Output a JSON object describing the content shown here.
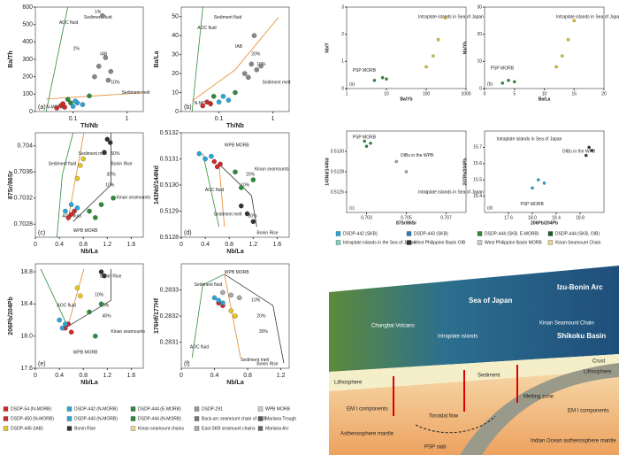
{
  "panels": [
    {
      "label": "(a)",
      "xlabel": "Th/Nb",
      "ylabel": "Ba/Th",
      "xlog": true,
      "xlim": [
        0.02,
        2
      ],
      "xticks": [
        0.1,
        1
      ],
      "ylim": [
        0,
        600
      ],
      "yticks": [
        0,
        100,
        200,
        300,
        400,
        500,
        600
      ],
      "annotations": [
        "AOC fluid",
        "Sediment fluid",
        "IAB",
        "N-MORB",
        "Sediment melt",
        "1%",
        "2%",
        "10%"
      ],
      "series": [
        {
          "color": "#d62728",
          "x": [
            0.05,
            0.06,
            0.07,
            0.065
          ],
          "y": [
            20,
            35,
            25,
            45
          ]
        },
        {
          "color": "#2aa7d8",
          "x": [
            0.1,
            0.12,
            0.15,
            0.11
          ],
          "y": [
            30,
            50,
            40,
            60
          ]
        },
        {
          "color": "#888",
          "x": [
            0.25,
            0.3,
            0.4,
            0.5,
            0.35,
            0.45
          ],
          "y": [
            200,
            260,
            310,
            230,
            550,
            180
          ]
        },
        {
          "color": "#2e8b3c",
          "x": [
            0.08,
            0.09,
            0.2
          ],
          "y": [
            70,
            50,
            90
          ]
        }
      ]
    },
    {
      "label": "(b)",
      "xlabel": "Th/Nb",
      "ylabel": "Ba/La",
      "xlog": true,
      "xlim": [
        0.02,
        2
      ],
      "xticks": [
        0.1,
        1
      ],
      "ylim": [
        0,
        55
      ],
      "yticks": [
        0,
        10,
        20,
        30,
        40,
        50
      ],
      "annotations": [
        "AOC fluid",
        "Sediment fluid",
        "IAB",
        "Sediment melt",
        "N-MORB",
        "10%",
        "20%"
      ],
      "series": [
        {
          "color": "#d62728",
          "x": [
            0.05,
            0.06,
            0.07
          ],
          "y": [
            3,
            5,
            4
          ]
        },
        {
          "color": "#2aa7d8",
          "x": [
            0.1,
            0.12,
            0.15
          ],
          "y": [
            5,
            8,
            6
          ]
        },
        {
          "color": "#888",
          "x": [
            0.3,
            0.4,
            0.5,
            0.45,
            0.6,
            0.35
          ],
          "y": [
            20,
            25,
            22,
            40,
            24,
            18
          ]
        },
        {
          "color": "#2e8b3c",
          "x": [
            0.08,
            0.2
          ],
          "y": [
            8,
            10
          ]
        }
      ]
    },
    {
      "label": "(c)",
      "xlabel": "Nb/La",
      "ylabel": "87Sr/86Sr",
      "xlim": [
        0,
        1.8
      ],
      "xticks": [
        0,
        0.4,
        0.8,
        1.2,
        1.6
      ],
      "ylim": [
        0.7026,
        0.7042
      ],
      "yticks": [
        0.7028,
        0.7032,
        0.7036,
        0.704
      ],
      "annotations": [
        "Sediment fluid",
        "Sediment melt",
        "Bonin Rise",
        "AOC fluid",
        "WPB MORB",
        "Kinan seamounts",
        "10%",
        "30%",
        "50%"
      ],
      "series": [
        {
          "color": "#d62728",
          "x": [
            0.55,
            0.6,
            0.65
          ],
          "y": [
            0.7029,
            0.70295,
            0.703
          ]
        },
        {
          "color": "#2aa7d8",
          "x": [
            0.5,
            0.6,
            0.7
          ],
          "y": [
            0.703,
            0.7031,
            0.70305
          ]
        },
        {
          "color": "#2e8b3c",
          "x": [
            0.9,
            1.0,
            1.1,
            1.3
          ],
          "y": [
            0.703,
            0.7029,
            0.7031,
            0.7032
          ]
        },
        {
          "color": "#e8c81e",
          "x": [
            0.7,
            0.75,
            0.8
          ],
          "y": [
            0.7035,
            0.7037,
            0.7038
          ]
        },
        {
          "color": "#333",
          "x": [
            1.2,
            1.25,
            1.15
          ],
          "y": [
            0.7041,
            0.70405,
            0.7039
          ]
        }
      ]
    },
    {
      "label": "(d)",
      "xlabel": "Nb/La",
      "ylabel": "143Nd/144Nd",
      "xlim": [
        0,
        1.8
      ],
      "xticks": [
        0,
        0.4,
        0.8,
        1.2,
        1.6
      ],
      "ylim": [
        0.5128,
        0.5132
      ],
      "yticks": [
        0.5128,
        0.5129,
        {
          "value": 0.513,
          "label": "0.5130"
        },
        0.5131,
        0.5132
      ],
      "annotations": [
        "WPB MORB",
        "Kinan seamounts",
        "Bonin Rise",
        "AOC fluid",
        "Sediment melt",
        "10%",
        "20%",
        "30%"
      ],
      "series": [
        {
          "color": "#d62728",
          "x": [
            0.55,
            0.6,
            0.65
          ],
          "y": [
            0.51309,
            0.51307,
            0.51308
          ]
        },
        {
          "color": "#2aa7d8",
          "x": [
            0.3,
            0.4,
            0.5
          ],
          "y": [
            0.51312,
            0.5131,
            0.51311
          ]
        },
        {
          "color": "#2e8b3c",
          "x": [
            0.9,
            1.0,
            1.2
          ],
          "y": [
            0.51305,
            0.51299,
            0.51302
          ]
        },
        {
          "color": "#333",
          "x": [
            1.0,
            1.1,
            1.2
          ],
          "y": [
            0.51292,
            0.51289,
            0.51286
          ]
        }
      ]
    },
    {
      "label": "(e)",
      "xlabel": "Nb/La",
      "ylabel": "206Pb/204Pb",
      "xlim": [
        0,
        1.8
      ],
      "xticks": [
        0,
        0.4,
        0.8,
        1.2,
        1.6
      ],
      "ylim": [
        17.6,
        18.9
      ],
      "yticks": [
        17.6,
        {
          "value": 18,
          "label": "18.0"
        },
        18.4,
        18.8
      ],
      "annotations": [
        "Bonin Rise",
        "AOC fluid",
        "WPB MORB",
        "Kinan seamounts",
        "10%",
        "20%",
        "40%"
      ],
      "series": [
        {
          "color": "#d62728",
          "x": [
            0.5,
            0.55,
            0.6
          ],
          "y": [
            18.1,
            18.15,
            18.05
          ]
        },
        {
          "color": "#2aa7d8",
          "x": [
            0.4,
            0.45,
            0.5
          ],
          "y": [
            18.2,
            18.1,
            18.15
          ]
        },
        {
          "color": "#2e8b3c",
          "x": [
            0.9,
            1.0,
            1.1
          ],
          "y": [
            18.3,
            18.0,
            18.4
          ]
        },
        {
          "color": "#e8c81e",
          "x": [
            0.7,
            0.75
          ],
          "y": [
            18.6,
            18.5
          ]
        },
        {
          "color": "#333",
          "x": [
            1.1,
            1.15
          ],
          "y": [
            18.8,
            18.75
          ]
        }
      ]
    },
    {
      "label": "(f)",
      "xlabel": "Nb/La",
      "ylabel": "176Hf/177Hf",
      "xlim": [
        0,
        1.3
      ],
      "xticks": [
        0,
        0.4,
        0.8,
        1.2
      ],
      "ylim": [
        0.283,
        0.2834
      ],
      "yticks": [
        0.2831,
        0.2832,
        0.2833
      ],
      "annotations": [
        "WPB MORB",
        "Sediment fluid",
        "AOC fluid",
        "Sediment melt",
        "Bonin Rise",
        "10%",
        "20%",
        "30%"
      ],
      "series": [
        {
          "color": "#d62728",
          "x": [
            0.45,
            0.5
          ],
          "y": [
            0.28325,
            0.28324
          ]
        },
        {
          "color": "#2aa7d8",
          "x": [
            0.4,
            0.45,
            0.5
          ],
          "y": [
            0.28327,
            0.28326,
            0.28325
          ]
        },
        {
          "color": "#e8c81e",
          "x": [
            0.6,
            0.65
          ],
          "y": [
            0.28322,
            0.2832
          ]
        },
        {
          "color": "#aaa",
          "x": [
            0.5,
            0.6,
            0.7
          ],
          "y": [
            0.28329,
            0.28328,
            0.28327
          ]
        }
      ]
    }
  ],
  "insets": [
    {
      "label": "(a)",
      "xlabel": "Ba/Yb",
      "ylabel": "Nb/Y",
      "xlog": true,
      "xlim": [
        1,
        1000
      ],
      "xticks": [
        1,
        10,
        100,
        1000
      ],
      "ylim": [
        0,
        3
      ],
      "yticks": [
        0,
        1,
        2,
        3
      ],
      "annotations": [
        "Intraplate islands in Sea of Japan",
        "PSP MORB"
      ],
      "series": [
        {
          "color": "#2e8b3c",
          "x": [
            5,
            8,
            10
          ],
          "y": [
            0.3,
            0.4,
            0.35
          ]
        },
        {
          "color": "#e8c81e",
          "x": [
            100,
            150,
            200,
            300
          ],
          "y": [
            0.8,
            1.2,
            1.8,
            2.6
          ]
        }
      ]
    },
    {
      "label": "(b)",
      "xlabel": "Ba/La",
      "ylabel": "Nb/Yb",
      "xlim": [
        0,
        20
      ],
      "xticks": [
        0,
        5,
        10,
        15,
        20
      ],
      "ylim": [
        0,
        30
      ],
      "yticks": [
        0,
        10,
        20,
        30
      ],
      "annotations": [
        "Intraplate islands in Sea of Japan",
        "PSP MORB"
      ],
      "series": [
        {
          "color": "#2e8b3c",
          "x": [
            3,
            4,
            5
          ],
          "y": [
            2,
            3,
            2.5
          ]
        },
        {
          "color": "#e8c81e",
          "x": [
            12,
            13,
            14,
            15
          ],
          "y": [
            8,
            12,
            18,
            25
          ]
        }
      ]
    },
    {
      "label": "(c)",
      "xlabel": "87Sr/86Sr",
      "ylabel": "143Nd/144Nd",
      "xlim": [
        0.702,
        0.708
      ],
      "xticks": [
        0.703,
        0.705,
        0.707
      ],
      "ylim": [
        0.5124,
        0.5132
      ],
      "yticks": [
        0.5126,
        0.5128,
        {
          "value": 0.513,
          "label": "0.5130"
        }
      ],
      "annotations": [
        "PSP MORB",
        "OIBs in the WPB",
        "Intraplate islands in Sea of Japan"
      ],
      "series": [
        {
          "color": "#2e8b3c",
          "x": [
            0.7029,
            0.703,
            0.7032
          ],
          "y": [
            0.5131,
            0.51305,
            0.51308
          ]
        },
        {
          "color": "#aaa",
          "x": [
            0.7045,
            0.705,
            0.706
          ],
          "y": [
            0.5129,
            0.5128,
            0.5126
          ]
        }
      ]
    },
    {
      "label": "(d)",
      "xlabel": "206Pb/204Pb",
      "ylabel": "207Pb/204Pb",
      "xlim": [
        17.2,
        19.2
      ],
      "xticks": [
        17.6,
        {
          "value": 18,
          "label": "18.0"
        },
        18.4,
        18.8
      ],
      "ylim": [
        15.3,
        15.8
      ],
      "yticks": [
        15.4,
        15.5,
        15.6,
        15.7
      ],
      "annotations": [
        "Intraplate islands in Sea of Japan",
        "OIBs in the WPB",
        "PSP MORB"
      ],
      "series": [
        {
          "color": "#2aa7d8",
          "x": [
            18.0,
            18.1,
            18.2
          ],
          "y": [
            15.45,
            15.5,
            15.48
          ]
        },
        {
          "color": "#333",
          "x": [
            18.9,
            19.0,
            18.95
          ],
          "y": [
            15.65,
            15.68,
            15.7
          ]
        }
      ]
    }
  ],
  "legend_left": [
    {
      "name": "DSDP-54 (N-MORB)",
      "color": "#d62728"
    },
    {
      "name": "DSDP-442 (N-MORB)",
      "color": "#2aa7d8"
    },
    {
      "name": "DSDP-444 (E-MORB)",
      "color": "#2e8b3c"
    },
    {
      "name": "DSDP-291",
      "color": "#999"
    },
    {
      "name": "WPB MORB",
      "color": "#ccc"
    },
    {
      "name": "DSDP-450 (N-MORB)",
      "color": "#d62728"
    },
    {
      "name": "DSDP-443 (N-MORB)",
      "color": "#2aa7d8"
    },
    {
      "name": "DSDP-444 (N-MORB)",
      "color": "#2e8b3c"
    },
    {
      "name": "Back-arc seamount chain of SKB",
      "color": "#777"
    },
    {
      "name": "Mariana Trough",
      "color": "#555"
    },
    {
      "name": "DSDP-445 (IAB)",
      "color": "#e8c81e"
    },
    {
      "name": "Bonin Rise",
      "color": "#333"
    },
    {
      "name": "Kinan seamount chains",
      "color": "#e8d890"
    },
    {
      "name": "East SKB seamount chains",
      "color": "#aaa"
    },
    {
      "name": "Mariana Arc",
      "color": "#666"
    }
  ],
  "legend_right": [
    {
      "name": "DSDP-442 (SKB)",
      "color": "#2aa7d8"
    },
    {
      "name": "DSDP-443 (SKB)",
      "color": "#2a7fb8"
    },
    {
      "name": "DSDP-444 (SKB, E-MORB)",
      "color": "#2e8b3c"
    },
    {
      "name": "DSDP-444 (SKB, OIB)",
      "color": "#1d5e2a"
    },
    {
      "name": "Intraplate islands in the Sea of Japan",
      "color": "#7fd0c0"
    },
    {
      "name": "West Philippine Basin OIB",
      "color": "#333"
    },
    {
      "name": "West Philippine Basin MORB",
      "color": "#ccc"
    },
    {
      "name": "Kinan Seamount Chain",
      "color": "#e8d890"
    }
  ],
  "diagram": {
    "labels": [
      "Sea of Japan",
      "Izu-Bonin Arc",
      "Shikoku Basin",
      "Kinan Seamount Chain",
      "Lithosphere",
      "Crust",
      "Sediment",
      "Lithosphere",
      "Melting zone",
      "EM I components",
      "EM I components",
      "Toroidal flow",
      "Asthenosphere mantle",
      "PSP slab",
      "Indian Ocean asthenosphere mantle",
      "Changbai Volcano",
      "Intraplate islands"
    ]
  }
}
